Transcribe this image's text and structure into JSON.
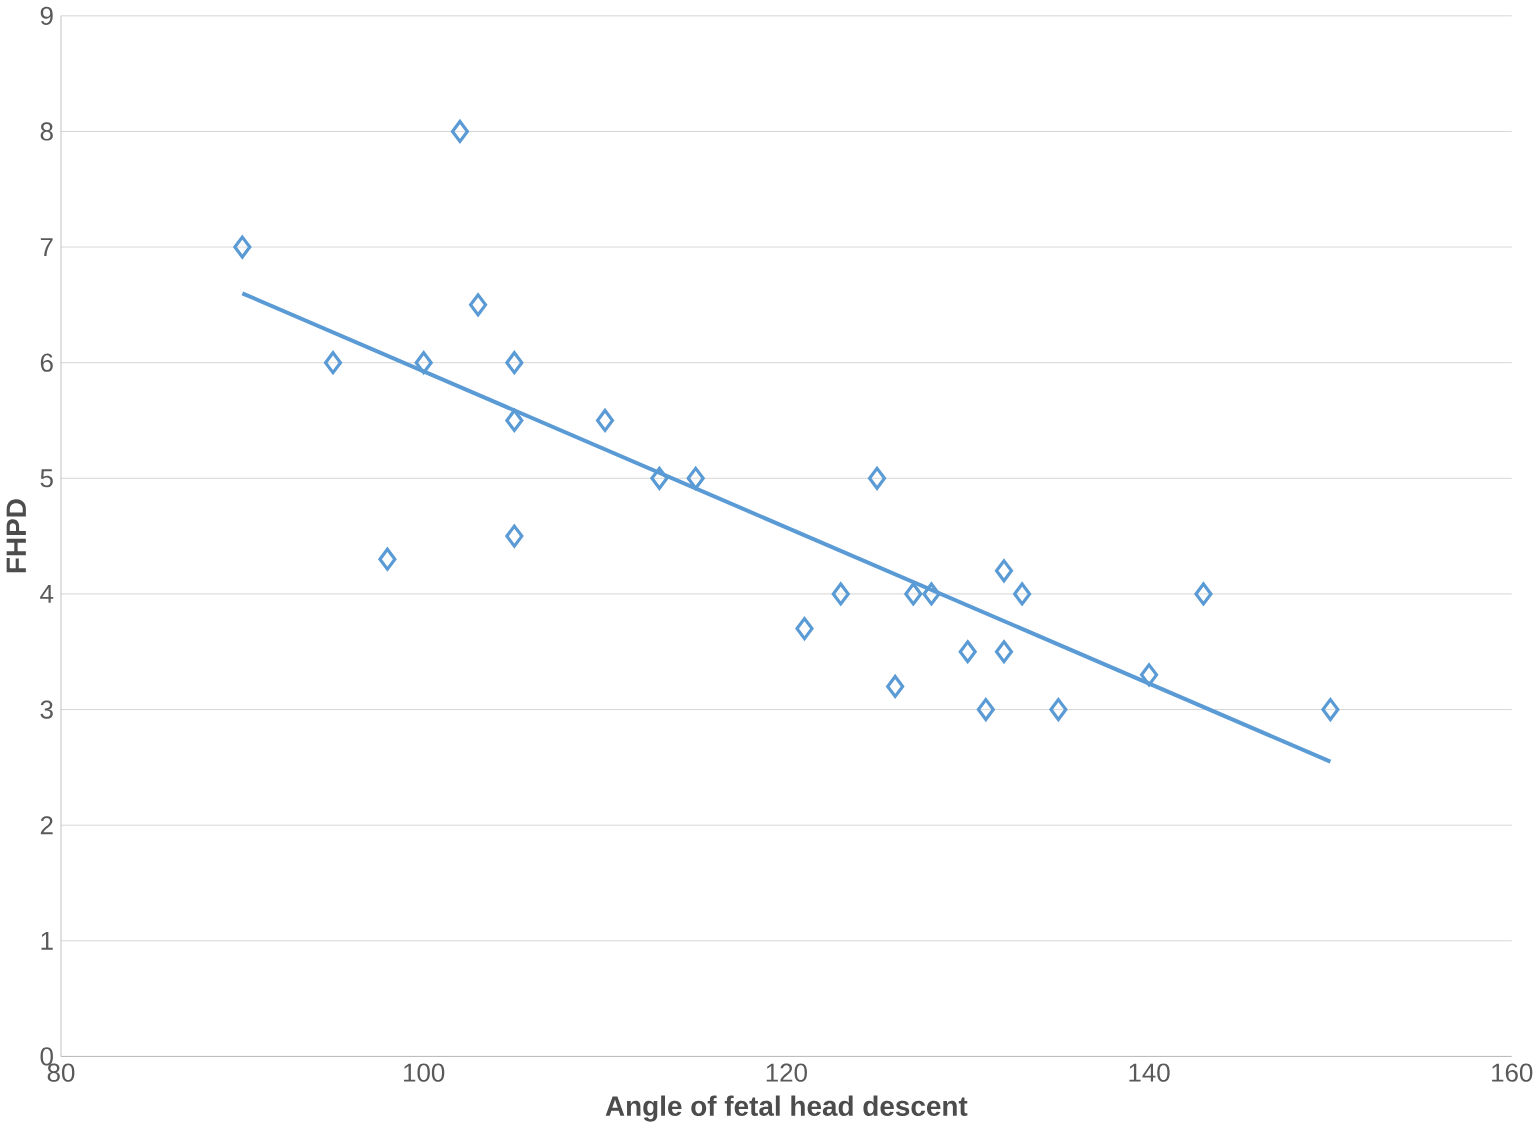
{
  "chart_data": {
    "type": "scatter",
    "xlabel": "Angle of fetal head descent",
    "ylabel": "FHPD",
    "xlim": [
      80,
      160
    ],
    "xticks": [
      80,
      100,
      120,
      140,
      160
    ],
    "ylim": [
      0,
      9
    ],
    "yticks": [
      0,
      1,
      2,
      3,
      4,
      5,
      6,
      7,
      8,
      9
    ],
    "grid": "y",
    "series": [
      {
        "color": "#5b9bd5",
        "marker": "diamond",
        "x": [
          90,
          95,
          98,
          100,
          102,
          103,
          105,
          105,
          105,
          110,
          113,
          115,
          121,
          123,
          125,
          126,
          127,
          128,
          130,
          131,
          132,
          132,
          133,
          135,
          140,
          143,
          150
        ],
        "values": [
          7,
          6,
          4.3,
          6,
          8,
          6.5,
          6,
          5.5,
          4.5,
          5.5,
          5,
          5,
          3.7,
          4,
          5,
          3.2,
          4,
          4,
          3.5,
          3,
          4.2,
          3.5,
          4,
          3,
          3.3,
          4,
          3
        ]
      },
      {
        "type": "line",
        "color": "#5b9bd5",
        "x": [
          90,
          150
        ],
        "values": [
          6.6,
          2.55
        ]
      }
    ]
  }
}
